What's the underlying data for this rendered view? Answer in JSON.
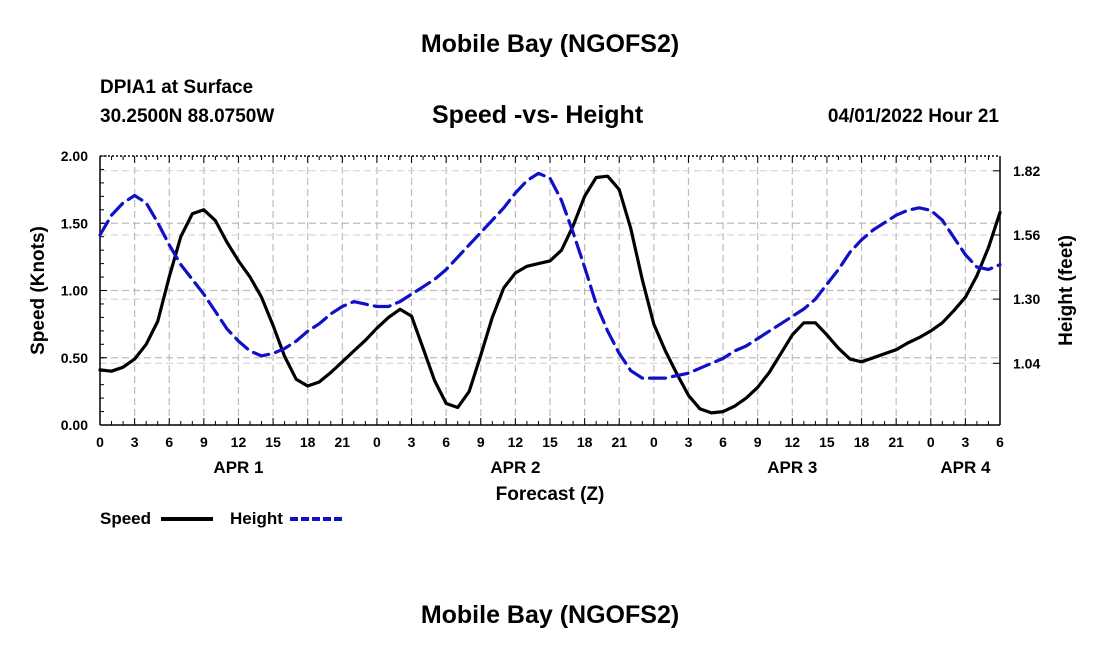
{
  "page": {
    "title": "Mobile Bay (NGOFS2)",
    "station": "DPIA1 at Surface",
    "coords": "30.2500N  88.0750W",
    "chart_title": "Speed -vs- Height",
    "datetime": "04/01/2022 Hour 21",
    "footer_title": "Mobile Bay (NGOFS2)"
  },
  "chart_data": {
    "type": "line",
    "title": "Speed -vs- Height",
    "xlabel": "Forecast (Z)",
    "ylabel": "Speed (Knots)",
    "y2label": "Height (feet)",
    "xlim": [
      0,
      78
    ],
    "ylim": [
      0,
      2.0
    ],
    "y2lim": [
      0.79,
      1.88
    ],
    "grid": true,
    "x_ticks": [
      0,
      3,
      6,
      9,
      12,
      15,
      18,
      21,
      24,
      27,
      30,
      33,
      36,
      39,
      42,
      45,
      48,
      51,
      54,
      57,
      60,
      63,
      66,
      69,
      72,
      75,
      78
    ],
    "x_tick_labels": [
      "0",
      "3",
      "6",
      "9",
      "12",
      "15",
      "18",
      "21",
      "0",
      "3",
      "6",
      "9",
      "12",
      "15",
      "18",
      "21",
      "0",
      "3",
      "6",
      "9",
      "12",
      "15",
      "18",
      "21",
      "0",
      "3",
      "6"
    ],
    "day_labels": [
      {
        "x": 12,
        "label": "APR 1"
      },
      {
        "x": 36,
        "label": "APR 2"
      },
      {
        "x": 60,
        "label": "APR 3"
      },
      {
        "x": 75,
        "label": "APR 4"
      }
    ],
    "y_ticks": [
      0,
      0.5,
      1.0,
      1.5,
      2.0
    ],
    "y_tick_labels": [
      "0.00",
      "0.50",
      "1.00",
      "1.50",
      "2.00"
    ],
    "y2_ticks": [
      1.04,
      1.3,
      1.56,
      1.82
    ],
    "y2_tick_labels": [
      "1.04",
      "1.30",
      "1.56",
      "1.82"
    ],
    "legend": [
      "Speed",
      "Height"
    ],
    "series": [
      {
        "name": "Speed",
        "axis": "left",
        "color": "#000000",
        "style": "solid",
        "x": [
          0,
          1,
          2,
          3,
          4,
          5,
          6,
          7,
          8,
          9,
          10,
          11,
          12,
          13,
          14,
          15,
          16,
          17,
          18,
          19,
          20,
          21,
          22,
          23,
          24,
          25,
          26,
          27,
          28,
          29,
          30,
          31,
          32,
          33,
          34,
          35,
          36,
          37,
          38,
          39,
          40,
          41,
          42,
          43,
          44,
          45,
          46,
          47,
          48,
          49,
          50,
          51,
          52,
          53,
          54,
          55,
          56,
          57,
          58,
          59,
          60,
          61,
          62,
          63,
          64,
          65,
          66,
          67,
          68,
          69,
          70,
          71,
          72,
          73,
          74,
          75,
          76,
          77,
          78
        ],
        "values": [
          0.41,
          0.4,
          0.43,
          0.49,
          0.6,
          0.77,
          1.1,
          1.4,
          1.57,
          1.6,
          1.52,
          1.36,
          1.22,
          1.1,
          0.95,
          0.74,
          0.51,
          0.34,
          0.29,
          0.32,
          0.39,
          0.47,
          0.55,
          0.63,
          0.72,
          0.8,
          0.86,
          0.81,
          0.57,
          0.33,
          0.16,
          0.13,
          0.25,
          0.52,
          0.8,
          1.02,
          1.13,
          1.18,
          1.2,
          1.22,
          1.3,
          1.48,
          1.7,
          1.84,
          1.85,
          1.75,
          1.46,
          1.08,
          0.75,
          0.55,
          0.38,
          0.22,
          0.12,
          0.09,
          0.1,
          0.14,
          0.2,
          0.28,
          0.39,
          0.53,
          0.67,
          0.76,
          0.76,
          0.67,
          0.57,
          0.49,
          0.47,
          0.5,
          0.53,
          0.56,
          0.61,
          0.65,
          0.7,
          0.76,
          0.85,
          0.95,
          1.11,
          1.32,
          1.58
        ]
      },
      {
        "name": "Height",
        "axis": "right",
        "color": "#1010c8",
        "style": "dashed",
        "x": [
          0,
          1,
          2,
          3,
          4,
          5,
          6,
          7,
          8,
          9,
          10,
          11,
          12,
          13,
          14,
          15,
          16,
          17,
          18,
          19,
          20,
          21,
          22,
          23,
          24,
          25,
          26,
          27,
          28,
          29,
          30,
          31,
          32,
          33,
          34,
          35,
          36,
          37,
          38,
          39,
          40,
          41,
          42,
          43,
          44,
          45,
          46,
          47,
          48,
          49,
          50,
          51,
          52,
          53,
          54,
          55,
          56,
          57,
          58,
          59,
          60,
          61,
          62,
          63,
          64,
          65,
          66,
          67,
          68,
          69,
          70,
          71,
          72,
          73,
          74,
          75,
          76,
          77,
          78
        ],
        "values": [
          1.56,
          1.64,
          1.69,
          1.72,
          1.69,
          1.61,
          1.52,
          1.44,
          1.38,
          1.32,
          1.25,
          1.18,
          1.13,
          1.09,
          1.07,
          1.08,
          1.1,
          1.13,
          1.17,
          1.2,
          1.24,
          1.27,
          1.29,
          1.28,
          1.27,
          1.27,
          1.29,
          1.32,
          1.35,
          1.38,
          1.42,
          1.47,
          1.52,
          1.57,
          1.62,
          1.67,
          1.73,
          1.78,
          1.81,
          1.79,
          1.7,
          1.57,
          1.43,
          1.28,
          1.17,
          1.08,
          1.01,
          0.98,
          0.98,
          0.98,
          0.99,
          1.0,
          1.02,
          1.04,
          1.06,
          1.09,
          1.11,
          1.14,
          1.17,
          1.2,
          1.23,
          1.26,
          1.3,
          1.36,
          1.42,
          1.49,
          1.54,
          1.58,
          1.61,
          1.64,
          1.66,
          1.67,
          1.66,
          1.62,
          1.55,
          1.48,
          1.43,
          1.42,
          1.44
        ]
      }
    ]
  }
}
